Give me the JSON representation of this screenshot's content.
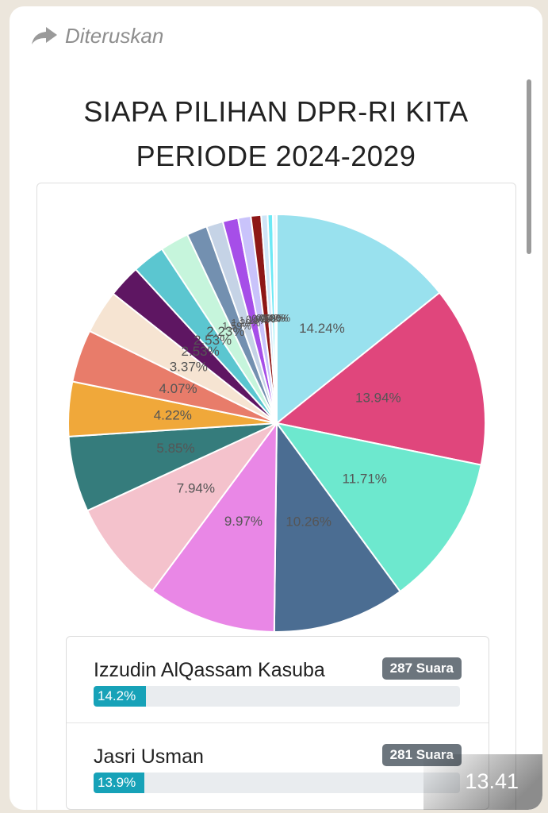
{
  "message": {
    "forwarded_label": "Diteruskan",
    "timestamp": "13.41"
  },
  "title_line1": "SIAPA PILIHAN DPR-RI KITA",
  "title_line2": "PERIODE 2024-2029",
  "chart_data": {
    "type": "pie",
    "values": [
      14.24,
      13.94,
      11.71,
      10.26,
      9.97,
      7.94,
      5.85,
      4.22,
      4.07,
      3.37,
      2.53,
      2.53,
      2.23,
      1.59,
      1.29,
      1.19,
      0.99,
      0.79,
      0.5,
      0.4,
      0.3
    ],
    "labels": [
      "14.24%",
      "13.94%",
      "11.71%",
      "10.26%",
      "9.97%",
      "7.94%",
      "5.85%",
      "4.22%",
      "4.07%",
      "3.37%",
      "2.53%",
      "2.53%",
      "2.23%",
      "1.59%",
      "1.29%",
      "1.19%",
      "0.99%",
      "0.79%",
      "0.50%",
      "0.40%",
      "0.30%"
    ],
    "colors": [
      "#99e1ee",
      "#e0467c",
      "#6de8ce",
      "#4b6d92",
      "#e987e6",
      "#f4c2cc",
      "#357c7c",
      "#f0a83a",
      "#e87c6a",
      "#f6e4d2",
      "#5e1662",
      "#5bc6d0",
      "#c6f5dc",
      "#7390b0",
      "#c5d3e6",
      "#a64ee8",
      "#c9c3fb",
      "#8e1717",
      "#cfe5f7",
      "#6ee9f5",
      "#eef6fb"
    ]
  },
  "candidates": [
    {
      "name": "Izzudin AlQassam Kasuba",
      "votes": "287 Suara",
      "percent": "14.2%",
      "fraction": 0.142
    },
    {
      "name": "Jasri Usman",
      "votes": "281 Suara",
      "percent": "13.9%",
      "fraction": 0.139
    }
  ]
}
